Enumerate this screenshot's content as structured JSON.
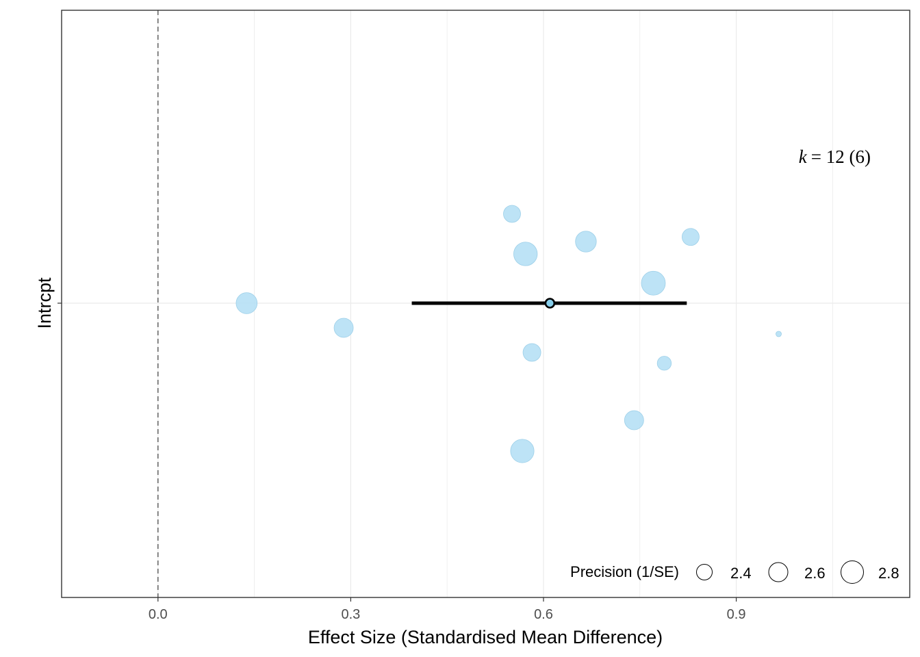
{
  "chart_data": {
    "type": "scatter",
    "subtype": "orchard-plot",
    "title": "",
    "xlabel": "Effect Size (Standardised Mean Difference)",
    "ylabel": "Intrcpt",
    "xlim": [
      -0.15,
      1.17
    ],
    "xticks": [
      "0.0",
      "0.3",
      "0.6",
      "0.9"
    ],
    "reference_line_x": 0,
    "grid": true,
    "estimate": {
      "label": "Intrcpt",
      "value": 0.61,
      "ci": [
        0.395,
        0.823
      ]
    },
    "points": [
      {
        "es": 0.138,
        "jitter": 0.0,
        "precision": 2.71
      },
      {
        "es": 0.289,
        "jitter": -0.08,
        "precision": 2.6
      },
      {
        "es": 0.551,
        "jitter": 0.29,
        "precision": 2.48
      },
      {
        "es": 0.572,
        "jitter": 0.16,
        "precision": 2.86
      },
      {
        "es": 0.666,
        "jitter": 0.2,
        "precision": 2.7
      },
      {
        "es": 0.829,
        "jitter": 0.215,
        "precision": 2.48
      },
      {
        "es": 0.771,
        "jitter": 0.065,
        "precision": 2.88
      },
      {
        "es": 0.966,
        "jitter": -0.1,
        "precision": 1.8
      },
      {
        "es": 0.582,
        "jitter": -0.16,
        "precision": 2.52
      },
      {
        "es": 0.788,
        "jitter": -0.195,
        "precision": 2.3
      },
      {
        "es": 0.741,
        "jitter": -0.38,
        "precision": 2.6
      },
      {
        "es": 0.567,
        "jitter": -0.48,
        "precision": 2.85
      }
    ],
    "annotation": {
      "k_symbol": "k",
      "text": "= 12 (6)"
    },
    "legend": {
      "title": "Precision (1/SE)",
      "position": "bottom-right",
      "entries": [
        {
          "label": "2.4",
          "value": 2.4
        },
        {
          "label": "2.6",
          "value": 2.6
        },
        {
          "label": "2.8",
          "value": 2.8
        }
      ]
    },
    "colors": {
      "point_fill": "#b6e0f5",
      "point_stroke": "#9ccfe8",
      "estimate_line": "#000000",
      "estimate_fill": "#87ceeb",
      "reference_line": "#555555",
      "grid": "#ebebeb",
      "panel_border": "#333333"
    }
  }
}
